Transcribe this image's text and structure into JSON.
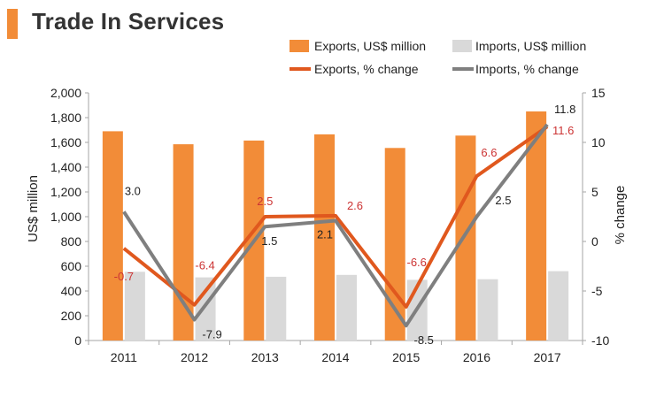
{
  "header": {
    "title": "Trade In Services"
  },
  "colors": {
    "exports_bar": "#f28c38",
    "imports_bar": "#d9d9d9",
    "exports_line": "#e0581e",
    "imports_line": "#7f7f7f",
    "exports_label": "#cc3333",
    "imports_label": "#222222",
    "accent": "#f28c38"
  },
  "chart_data": {
    "type": "bar",
    "title": "Trade In Services",
    "categories": [
      "2011",
      "2012",
      "2013",
      "2014",
      "2015",
      "2016",
      "2017"
    ],
    "series": [
      {
        "name": "Exports, US$ million",
        "kind": "bar",
        "axis": "left",
        "values": [
          1690,
          1585,
          1615,
          1665,
          1555,
          1655,
          1850
        ]
      },
      {
        "name": "Imports, US$ million",
        "kind": "bar",
        "axis": "left",
        "values": [
          555,
          510,
          515,
          530,
          490,
          495,
          560
        ]
      },
      {
        "name": "Exports, % change",
        "kind": "line",
        "axis": "right",
        "values": [
          -0.7,
          -6.4,
          2.5,
          2.6,
          -6.6,
          6.6,
          11.6
        ],
        "labels": [
          "-0.7",
          "-6.4",
          "2.5",
          "2.6",
          "-6.6",
          "6.6",
          "11.6"
        ]
      },
      {
        "name": "Imports, % change",
        "kind": "line",
        "axis": "right",
        "values": [
          3.0,
          -7.9,
          1.5,
          2.1,
          -8.5,
          2.5,
          11.8
        ],
        "labels": [
          "3.0",
          "-7.9",
          "1.5",
          "2.1",
          "-8.5",
          "2.5",
          "11.8"
        ]
      }
    ],
    "ylabel": "US$ million",
    "ylim": [
      0,
      2000
    ],
    "yticks": [
      "0",
      "200",
      "400",
      "600",
      "800",
      "1,000",
      "1,200",
      "1,400",
      "1,600",
      "1,800",
      "2,000"
    ],
    "y2label": "% change",
    "y2lim": [
      -10,
      15
    ],
    "y2ticks": [
      "-10",
      "-5",
      "0",
      "5",
      "10",
      "15"
    ],
    "legend": "top-right",
    "grid": false
  }
}
